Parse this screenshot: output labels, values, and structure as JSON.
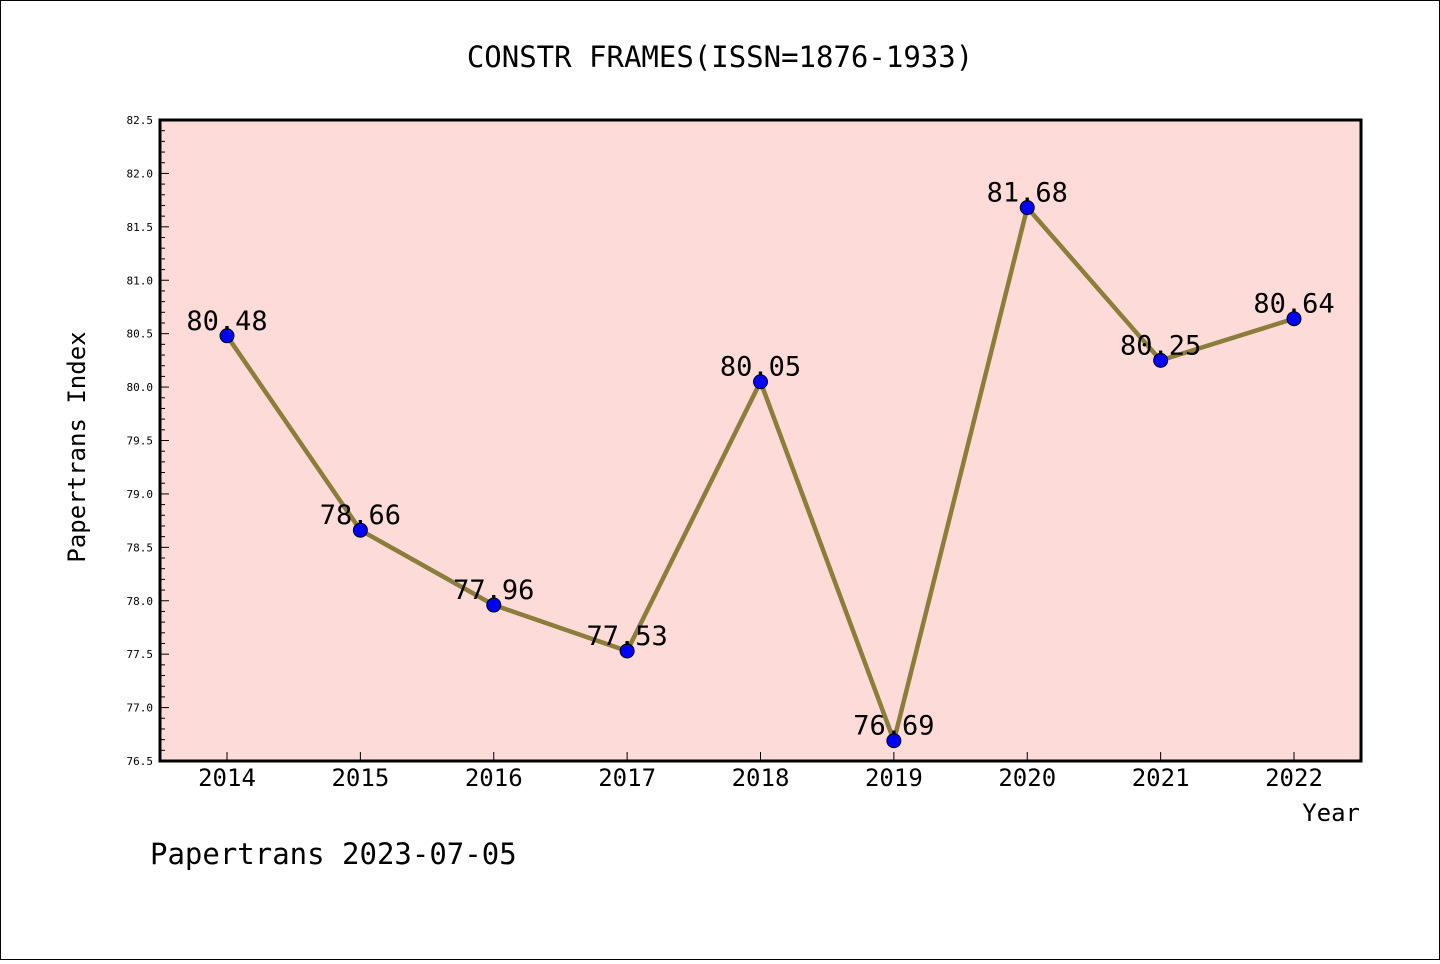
{
  "chart_data": {
    "type": "line",
    "title": "CONSTR FRAMES(ISSN=1876-1933)",
    "xlabel": "Year",
    "ylabel": "Papertrans Index",
    "categories": [
      "2014",
      "2015",
      "2016",
      "2017",
      "2018",
      "2019",
      "2020",
      "2021",
      "2022"
    ],
    "series": [
      {
        "values": [
          80.48,
          78.66,
          77.96,
          77.53,
          80.05,
          76.69,
          81.68,
          80.25,
          80.64
        ],
        "data_labels": [
          "80.48",
          "78.66",
          "77.96",
          "77.53",
          "80.05",
          "76.69",
          "81.68",
          "80.25",
          "80.64"
        ],
        "line_color": "#8b7d3a",
        "marker_color": "#0000ff"
      }
    ],
    "ylim": [
      76.5,
      82.5
    ],
    "yticks": [
      "76.5",
      "77.0",
      "77.5",
      "78.0",
      "78.5",
      "79.0",
      "79.5",
      "80.0",
      "80.5",
      "81.0",
      "81.5",
      "82.0",
      "82.5"
    ],
    "grid": false,
    "background_color": "#fddbd8"
  },
  "footer": "Papertrans 2023-07-05"
}
